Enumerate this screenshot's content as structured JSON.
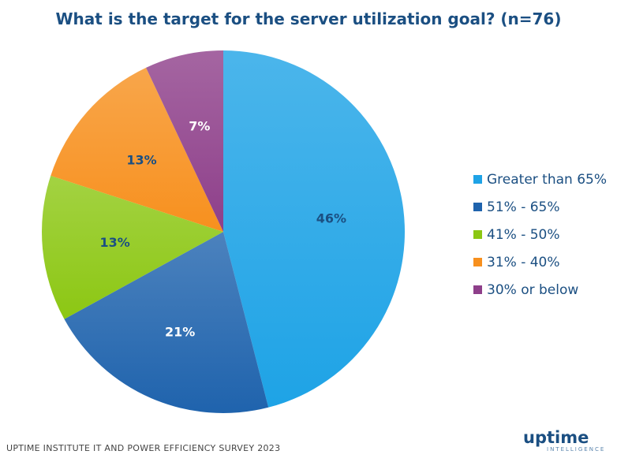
{
  "chart_data": {
    "type": "pie",
    "title": "What is the target for the server utilization goal? (n=76)",
    "categories": [
      "Greater than 65%",
      "51% - 65%",
      "41% - 50%",
      "31% - 40%",
      "30% or below"
    ],
    "values": [
      46,
      21,
      13,
      13,
      7
    ],
    "labels": [
      "46%",
      "21%",
      "13%",
      "13%",
      "7%"
    ],
    "colors": [
      "#1ea3e6",
      "#1f63ad",
      "#8cc713",
      "#f7901e",
      "#8e3f8a"
    ],
    "label_colors": [
      "#1b4f82",
      "#ffffff",
      "#1b4f82",
      "#1b4f82",
      "#ffffff"
    ],
    "start": "top",
    "direction": "clockwise",
    "legend_position": "right"
  },
  "footer": "UPTIME INSTITUTE IT AND POWER EFFICIENCY SURVEY 2023",
  "logo": {
    "name": "uptime",
    "sub": "INTELLIGENCE"
  }
}
